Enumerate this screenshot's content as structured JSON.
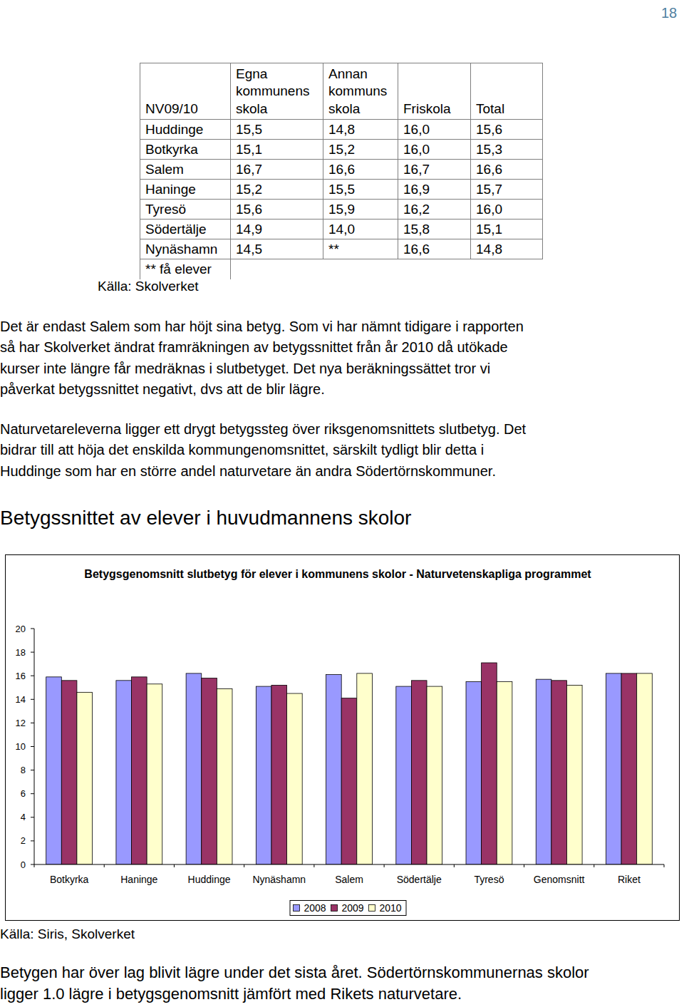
{
  "page_number": "18",
  "table": {
    "header": [
      "NV09/10",
      "Egna kommunens skola",
      "Annan kommuns skola",
      "Friskola",
      "Total"
    ],
    "rows": [
      [
        "Huddinge",
        "15,5",
        "14,8",
        "16,0",
        "15,6"
      ],
      [
        "Botkyrka",
        "15,1",
        "15,2",
        "16,0",
        "15,3"
      ],
      [
        "Salem",
        "16,7",
        "16,6",
        "16,7",
        "16,6"
      ],
      [
        "Haninge",
        "15,2",
        "15,5",
        "16,9",
        "15,7"
      ],
      [
        "Tyresö",
        "15,6",
        "15,9",
        "16,2",
        "16,0"
      ],
      [
        "Södertälje",
        "14,9",
        "14,0",
        "15,8",
        "15,1"
      ],
      [
        "Nynäshamn",
        "14,5",
        "**",
        "16,6",
        "14,8"
      ]
    ],
    "note": "** få elever",
    "source": "Källa: Skolverket"
  },
  "paragraphs": [
    {
      "lines": [
        "Det är endast Salem som har höjt sina betyg. Som vi har nämnt tidigare i rapporten",
        "så har Skolverket ändrat framräkningen av betygssnittet från år 2010 då utökade",
        "kurser inte längre får medräknas i slutbetyget. Det nya beräkningssättet tror vi",
        "påverkat betygssnittet negativt, dvs att de blir lägre."
      ]
    },
    {
      "lines": [
        "Naturvetareleverna ligger ett drygt betygssteg över riksgenomsnittets slutbetyg. Det",
        "bidrar till att höja det enskilda kommungenomsnittet, särskilt tydligt blir detta i",
        "Huddinge som har en större andel naturvetare än andra Södertörnskommuner."
      ]
    }
  ],
  "heading": "Betygssnittet av elever i huvudmannens skolor",
  "chart_data": {
    "type": "bar",
    "title": "Betygsgenomsnitt slutbetyg för elever i kommunens skolor - Naturvetenskapliga programmet",
    "categories": [
      "Botkyrka",
      "Haninge",
      "Huddinge",
      "Nynäshamn",
      "Salem",
      "Södertälje",
      "Tyresö",
      "Genomsnitt",
      "Riket"
    ],
    "series": [
      {
        "name": "2008",
        "color": "#9999ff",
        "values": [
          15.9,
          15.6,
          16.2,
          15.1,
          16.1,
          15.1,
          15.5,
          15.7,
          16.2
        ]
      },
      {
        "name": "2009",
        "color": "#993366",
        "values": [
          15.6,
          15.9,
          15.8,
          15.2,
          14.1,
          15.6,
          17.1,
          15.6,
          16.2
        ]
      },
      {
        "name": "2010",
        "color": "#ffffcc",
        "values": [
          14.6,
          15.3,
          14.9,
          14.5,
          16.2,
          15.1,
          15.5,
          15.2,
          16.2
        ]
      }
    ],
    "ylim": [
      0,
      20
    ],
    "yticks": [
      0,
      2,
      4,
      6,
      8,
      10,
      12,
      14,
      16,
      18,
      20
    ],
    "grid": false,
    "legend": "bottom"
  },
  "chart_source": "Källa: Siris, Skolverket",
  "closing": {
    "lines": [
      "Betygen har över lag blivit lägre under det sista året. Södertörnskommunernas skolor",
      "ligger 1.0 lägre i betygsgenomsnitt jämfört med Rikets naturvetare."
    ]
  }
}
